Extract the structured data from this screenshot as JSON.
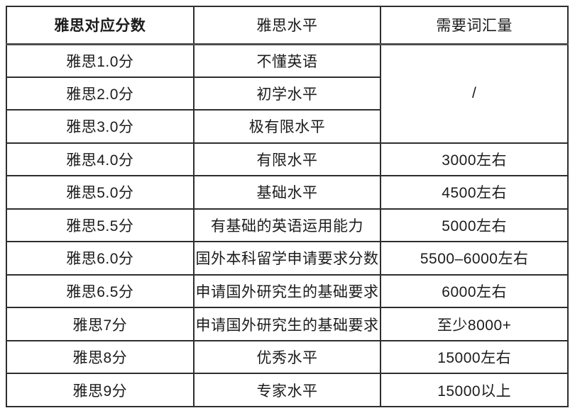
{
  "colors": {
    "background": "#ffffff",
    "border": "#2e2e2e",
    "header_divider": "#4d4d4d",
    "text": "#1c1c1c"
  },
  "table": {
    "headers": {
      "score": "雅思对应分数",
      "level": "雅思水平",
      "vocab": "需要词汇量"
    },
    "merged_vocab": "/",
    "rows": [
      {
        "score": "雅思1.0分",
        "level": "不懂英语"
      },
      {
        "score": "雅思2.0分",
        "level": "初学水平"
      },
      {
        "score": "雅思3.0分",
        "level": "极有限水平"
      },
      {
        "score": "雅思4.0分",
        "level": "有限水平",
        "vocab": "3000左右"
      },
      {
        "score": "雅思5.0分",
        "level": "基础水平",
        "vocab": "4500左右"
      },
      {
        "score": "雅思5.5分",
        "level": "有基础的英语运用能力",
        "vocab": "5000左右"
      },
      {
        "score": "雅思6.0分",
        "level": "国外本科留学申请要求分数",
        "vocab": "5500–6000左右"
      },
      {
        "score": "雅思6.5分",
        "level": "申请国外研究生的基础要求",
        "vocab": "6000左右"
      },
      {
        "score": "雅思7分",
        "level": "申请国外研究生的基础要求",
        "vocab": "至少8000+"
      },
      {
        "score": "雅思8分",
        "level": "优秀水平",
        "vocab": "15000左右"
      },
      {
        "score": "雅思9分",
        "level": "专家水平",
        "vocab": "15000以上"
      }
    ]
  }
}
